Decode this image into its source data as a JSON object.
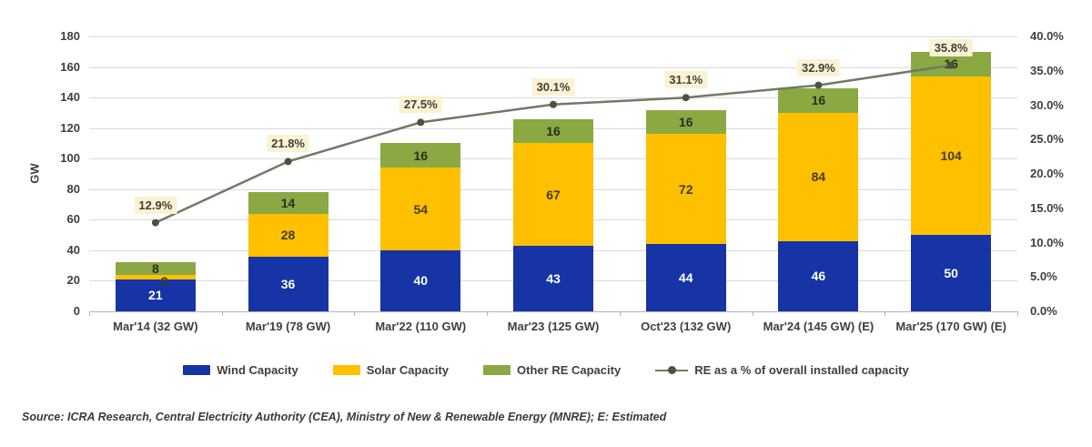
{
  "chart_data": {
    "type": "bar",
    "subtype": "stacked-column-with-line",
    "title": "",
    "ylabel": "GW",
    "categories": [
      "Mar'14 (32 GW)",
      "Mar'19 (78 GW)",
      "Mar'22 (110 GW)",
      "Mar'23 (125 GW)",
      "Oct'23 (132 GW)",
      "Mar'24 (145 GW) (E)",
      "Mar'25 (170 GW) (E)"
    ],
    "series": [
      {
        "name": "Wind Capacity",
        "color": "#1634a5",
        "label_color": "#ffffff",
        "values": [
          21,
          36,
          40,
          43,
          44,
          46,
          50
        ]
      },
      {
        "name": "Solar Capacity",
        "color": "#ffc000",
        "label_color": "#3f3f1a",
        "values": [
          3,
          28,
          54,
          67,
          72,
          84,
          104
        ]
      },
      {
        "name": "Other RE Capacity",
        "color": "#8aa943",
        "label_color": "#2e2e18",
        "values": [
          8,
          14,
          16,
          16,
          16,
          16,
          16
        ]
      }
    ],
    "line": {
      "name": "RE as a % of overall installed capacity",
      "color": "#6f7a64",
      "marker_color": "#4c523d",
      "label_bg": "#fcf2d2",
      "values_pct": [
        12.9,
        21.8,
        27.5,
        30.1,
        31.1,
        32.9,
        35.8
      ],
      "labels": [
        "12.9%",
        "21.8%",
        "27.5%",
        "30.1%",
        "31.1%",
        "32.9%",
        "35.8%"
      ]
    },
    "axis_left": {
      "min": 0,
      "max": 180,
      "step": 20,
      "labels": [
        "0",
        "20",
        "40",
        "60",
        "80",
        "100",
        "120",
        "140",
        "160",
        "180"
      ]
    },
    "axis_right": {
      "min": 0,
      "max": 40,
      "step": 5,
      "labels": [
        "0.0%",
        "5.0%",
        "10.0%",
        "15.0%",
        "20.0%",
        "25.0%",
        "30.0%",
        "35.0%",
        "40.0%"
      ]
    },
    "grid": true,
    "legend_position": "bottom"
  },
  "source": {
    "text": "Source: ICRA Research, Central Electricity Authority (CEA), Ministry of New & Renewable Energy (MNRE); E: Estimated"
  }
}
